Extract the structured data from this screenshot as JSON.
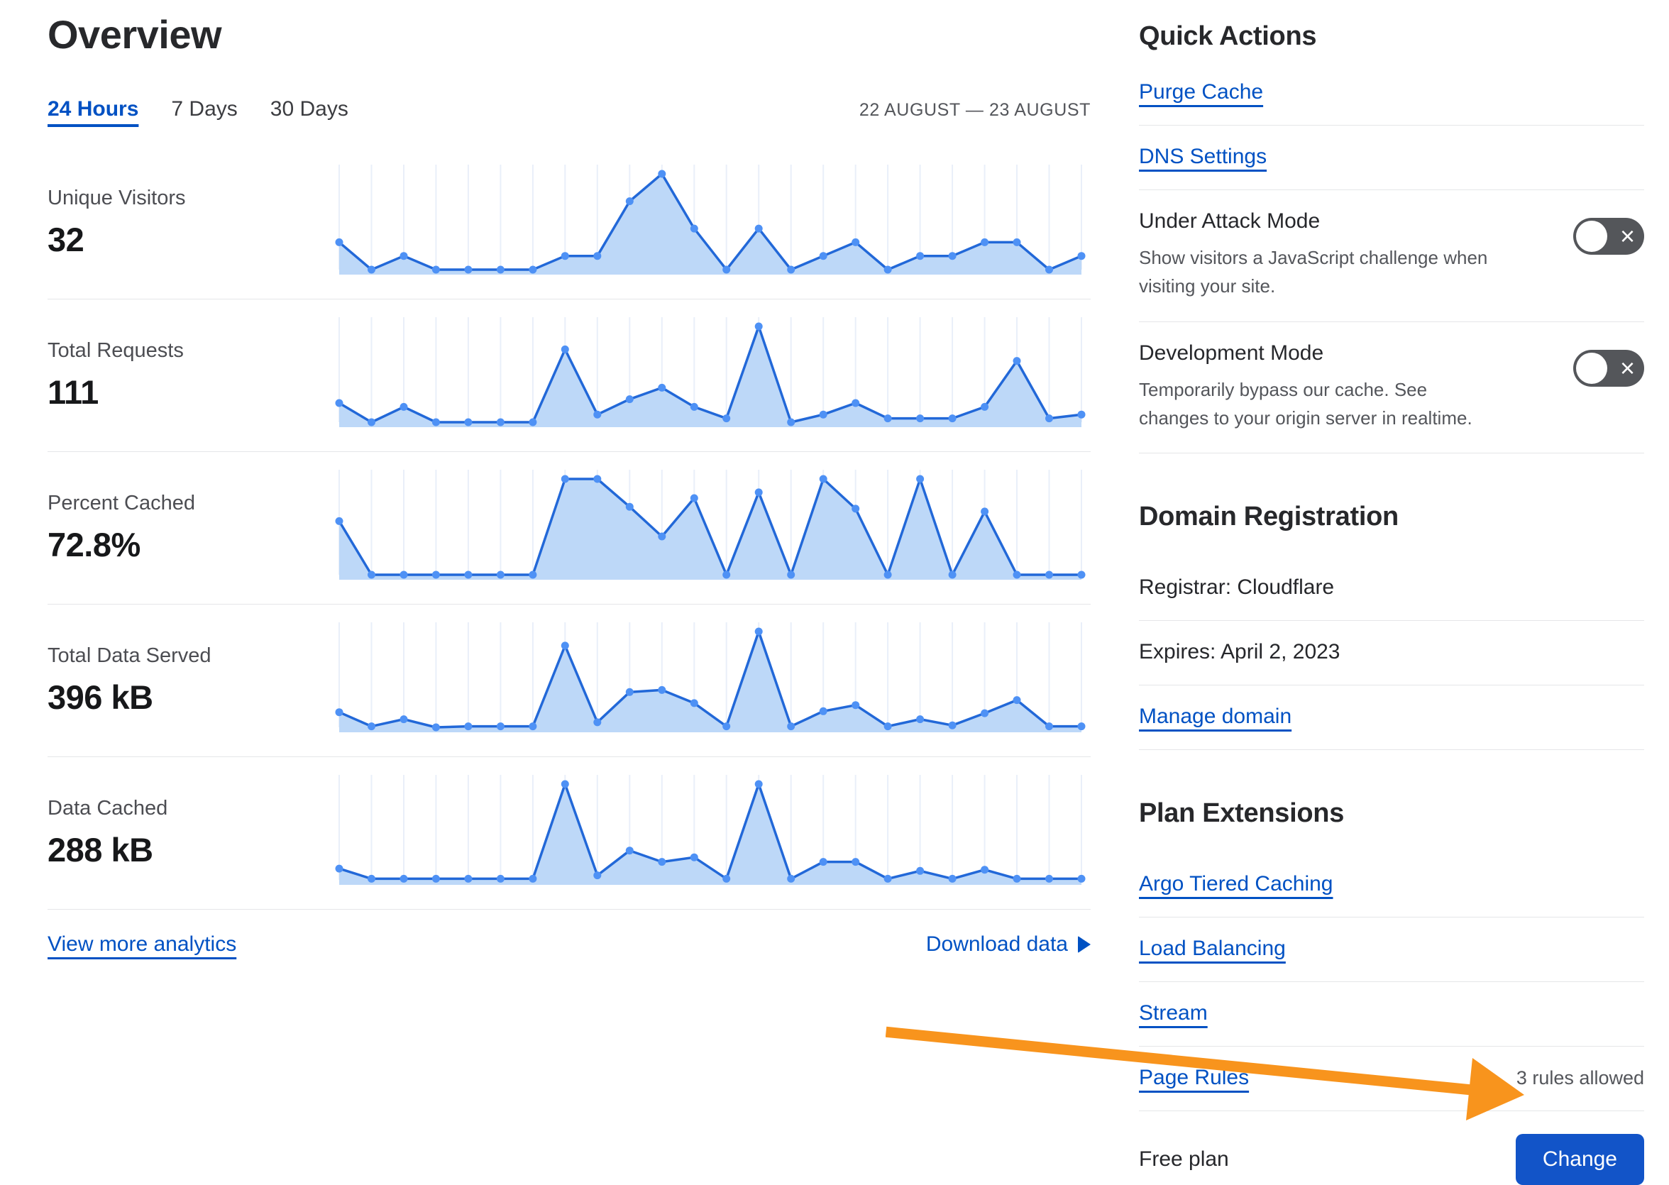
{
  "header": {
    "title": "Overview",
    "tabs": [
      {
        "label": "24 Hours",
        "active": true
      },
      {
        "label": "7 Days",
        "active": false
      },
      {
        "label": "30 Days",
        "active": false
      }
    ],
    "date_range": "22 AUGUST — 23 AUGUST"
  },
  "metrics": [
    {
      "label": "Unique Visitors",
      "value": "32"
    },
    {
      "label": "Total Requests",
      "value": "111"
    },
    {
      "label": "Percent Cached",
      "value": "72.8%"
    },
    {
      "label": "Total Data Served",
      "value": "396 kB"
    },
    {
      "label": "Data Cached",
      "value": "288 kB"
    }
  ],
  "chart_data": [
    {
      "type": "area",
      "title": "Unique Visitors",
      "total_shown": "32",
      "x": "24 hourly points, 22 August — 23 August",
      "units": "visitors per hour (estimated)",
      "values": [
        2,
        0,
        1,
        0,
        0,
        0,
        0,
        1,
        1,
        5,
        7,
        3,
        0,
        3,
        0,
        1,
        2,
        0,
        1,
        1,
        2,
        2,
        0,
        1
      ],
      "grid": "vertical lines at each point",
      "legend": "none"
    },
    {
      "type": "area",
      "title": "Total Requests",
      "total_shown": "111",
      "x": "24 hourly points, 22 August — 23 August",
      "units": "requests per hour (estimated)",
      "values": [
        5,
        0,
        4,
        0,
        0,
        0,
        0,
        19,
        2,
        6,
        9,
        4,
        1,
        25,
        0,
        2,
        5,
        1,
        1,
        1,
        4,
        16,
        1,
        2
      ],
      "grid": "vertical lines at each point",
      "legend": "none"
    },
    {
      "type": "area",
      "title": "Percent Cached",
      "total_shown": "72.8%",
      "x": "24 hourly points, 22 August — 23 August",
      "units": "percent cached per hour (estimated)",
      "values": [
        56,
        0,
        0,
        0,
        0,
        0,
        0,
        100,
        100,
        71,
        40,
        80,
        0,
        86,
        0,
        100,
        69,
        0,
        100,
        0,
        66,
        0,
        0,
        0
      ],
      "grid": "vertical lines at each point",
      "legend": "none"
    },
    {
      "type": "area",
      "title": "Total Data Served",
      "total_shown": "396 kB",
      "x": "24 hourly points, 22 August — 23 August",
      "units": "kB per hour (estimated)",
      "values": [
        15,
        1,
        8,
        0,
        1,
        1,
        1,
        81,
        5,
        35,
        37,
        24,
        1,
        95,
        1,
        16,
        22,
        1,
        8,
        2,
        14,
        27,
        1,
        1
      ],
      "grid": "vertical lines at each point",
      "legend": "none"
    },
    {
      "type": "area",
      "title": "Data Cached",
      "total_shown": "288 kB",
      "x": "24 hourly points, 22 August — 23 August",
      "units": "kB per hour (estimated)",
      "values": [
        10,
        1,
        1,
        1,
        1,
        1,
        1,
        85,
        4,
        26,
        16,
        20,
        1,
        85,
        1,
        16,
        16,
        1,
        8,
        1,
        9,
        1,
        1,
        1
      ],
      "grid": "vertical lines at each point",
      "legend": "none"
    }
  ],
  "footer": {
    "view_more": "View more analytics",
    "download": "Download data"
  },
  "quick_actions": {
    "heading": "Quick Actions",
    "purge_cache": "Purge Cache",
    "dns_settings": "DNS Settings",
    "under_attack": {
      "title": "Under Attack Mode",
      "description": "Show visitors a JavaScript challenge when visiting your site.",
      "state": "off"
    },
    "development_mode": {
      "title": "Development Mode",
      "description": "Temporarily bypass our cache. See changes to your origin server in realtime.",
      "state": "off"
    }
  },
  "domain_registration": {
    "heading": "Domain Registration",
    "registrar": "Registrar: Cloudflare",
    "expires": "Expires: April 2, 2023",
    "manage_link": "Manage domain"
  },
  "plan_extensions": {
    "heading": "Plan Extensions",
    "argo": "Argo Tiered Caching",
    "load_balancing": "Load Balancing",
    "stream": "Stream",
    "page_rules": "Page Rules",
    "page_rules_note": "3 rules allowed"
  },
  "plan": {
    "label": "Free plan",
    "change_button": "Change"
  },
  "toggle": {
    "x_glyph": "×"
  },
  "colors": {
    "accent_blue": "#0051c3",
    "button_blue": "#1254c8",
    "chart_line": "#2268d8",
    "chart_dot": "#4e91f5",
    "chart_fill": "#bdd8f8",
    "chart_grid": "#e9eff9",
    "toggle_off_bg": "#54565a",
    "divider": "#e5e6e8",
    "arrow_orange": "#f8941d"
  }
}
